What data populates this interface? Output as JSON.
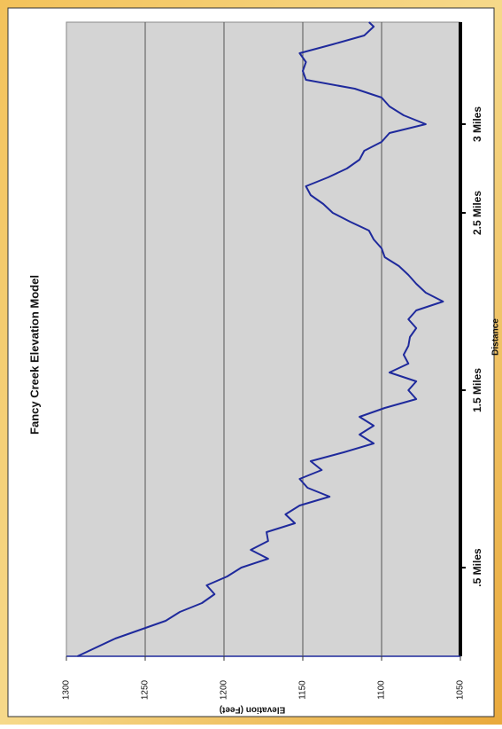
{
  "chart_data": {
    "type": "line",
    "title": "Fancy Creek Elevation Model",
    "x_label": "Distance",
    "y_label": "Elevation (Feet)",
    "x": [
      0,
      0.1,
      0.2,
      0.25,
      0.3,
      0.35,
      0.4,
      0.45,
      0.5,
      0.55,
      0.6,
      0.65,
      0.7,
      0.75,
      0.8,
      0.85,
      0.9,
      0.95,
      1.0,
      1.05,
      1.1,
      1.15,
      1.2,
      1.25,
      1.3,
      1.35,
      1.4,
      1.45,
      1.5,
      1.55,
      1.6,
      1.65,
      1.7,
      1.75,
      1.8,
      1.85,
      1.9,
      1.95,
      2.0,
      2.05,
      2.1,
      2.15,
      2.2,
      2.25,
      2.3,
      2.35,
      2.4,
      2.45,
      2.5,
      2.55,
      2.6,
      2.65,
      2.7,
      2.75,
      2.8,
      2.85,
      2.9,
      2.95,
      3.0,
      3.05,
      3.1,
      3.15,
      3.2,
      3.25,
      3.3,
      3.35,
      3.4,
      3.45,
      3.5,
      3.55,
      3.575
    ],
    "series": [
      {
        "color": "#1f2a9c",
        "values": [
          1293,
          1269,
          1237,
          1228,
          1214,
          1206,
          1211,
          1198,
          1189,
          1172,
          1183,
          1172,
          1173,
          1155,
          1161,
          1152,
          1133,
          1147,
          1152,
          1138,
          1145,
          1124,
          1105,
          1114,
          1105,
          1114,
          1098,
          1078,
          1083,
          1078,
          1095,
          1083,
          1086,
          1083,
          1082,
          1078,
          1083,
          1078,
          1061,
          1072,
          1078,
          1083,
          1089,
          1098,
          1100,
          1105,
          1108,
          1120,
          1131,
          1137,
          1145,
          1148,
          1134,
          1122,
          1114,
          1111,
          1100,
          1095,
          1072,
          1086,
          1095,
          1100,
          1117,
          1148,
          1150,
          1148,
          1152,
          1131,
          1111,
          1105,
          1108
        ]
      }
    ],
    "xlim": [
      0,
      3.575
    ],
    "xticks": [
      {
        "value": 0.5,
        "label": ".5 Miles"
      },
      {
        "value": 1.5,
        "label": "1.5 Miles"
      },
      {
        "value": 2.5,
        "label": "2.5 Miles"
      },
      {
        "value": 3,
        "label": "3 Miles"
      }
    ],
    "ylim": [
      1050,
      1300
    ],
    "yticks": [
      1050,
      1100,
      1150,
      1200,
      1250,
      1300
    ],
    "grid": true
  }
}
